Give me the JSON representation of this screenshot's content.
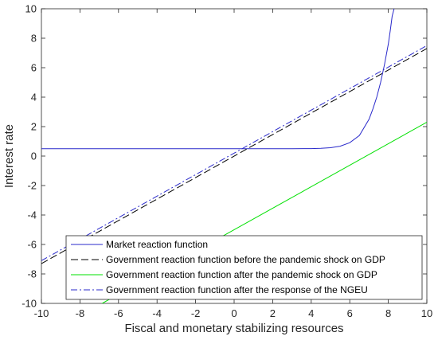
{
  "chart_data": {
    "type": "line",
    "xlabel": "Fiscal and monetary stabilizing resources",
    "ylabel": "Interest rate",
    "xlim": [
      -10,
      10
    ],
    "ylim": [
      -10,
      10
    ],
    "x_ticks": [
      -10,
      -8,
      -6,
      -4,
      -2,
      0,
      2,
      4,
      6,
      8,
      10
    ],
    "y_ticks": [
      -10,
      -8,
      -6,
      -4,
      -2,
      0,
      2,
      4,
      6,
      8,
      10
    ],
    "grid": false,
    "legend_position": "bottom",
    "series": [
      {
        "name": "Market reaction function",
        "color": "#2a2acb",
        "style": "solid",
        "x": [
          -10,
          -2,
          0,
          2,
          3,
          4,
          4.5,
          5,
          5.5,
          6,
          6.5,
          7,
          7.2,
          7.4,
          7.6,
          7.8,
          8.0,
          8.1,
          8.2,
          8.3
        ],
        "y": [
          0.5,
          0.5,
          0.5,
          0.5,
          0.5,
          0.51,
          0.53,
          0.57,
          0.67,
          0.91,
          1.4,
          2.5,
          3.2,
          4.0,
          5.0,
          6.2,
          7.6,
          8.5,
          9.5,
          10
        ]
      },
      {
        "name": "Government reaction function before the pandemic shock on GDP",
        "color": "#000000",
        "style": "dashed",
        "x": [
          -10,
          10
        ],
        "y": [
          -7.3,
          7.3
        ]
      },
      {
        "name": "Government reaction function after the pandemic shock on GDP",
        "color": "#00e000",
        "style": "solid",
        "x": [
          -10,
          10
        ],
        "y": [
          -12.3,
          2.3
        ]
      },
      {
        "name": "Government reaction function after the response of the NGEU",
        "color": "#2a2acb",
        "style": "dashdot",
        "x": [
          -10,
          10
        ],
        "y": [
          -7.1,
          7.5
        ]
      }
    ]
  }
}
